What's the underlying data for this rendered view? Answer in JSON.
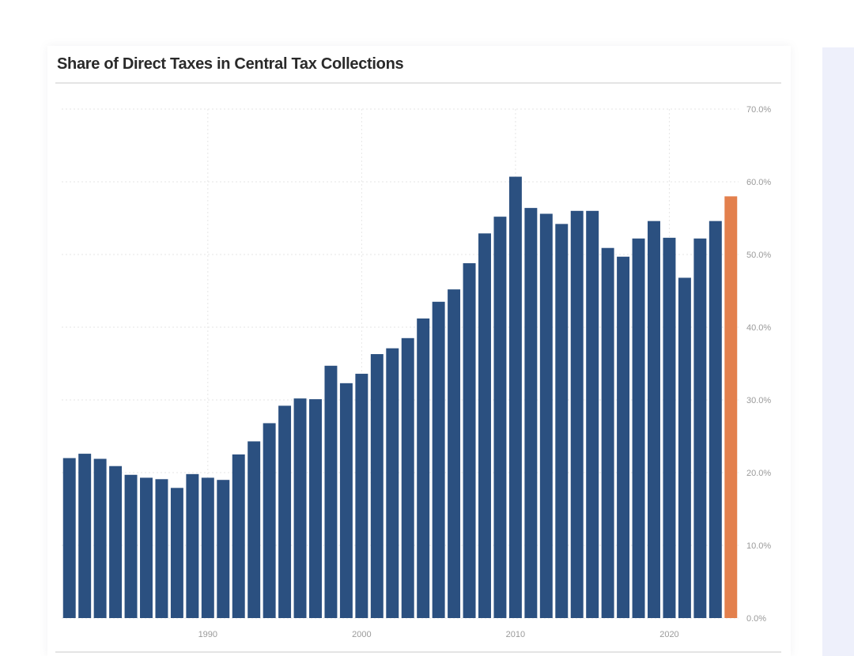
{
  "chart_data": {
    "type": "bar",
    "title": "Share of Direct Taxes in Central Tax Collections",
    "xlabel": "",
    "ylabel": "",
    "ylim": [
      0,
      70
    ],
    "y_ticks": [
      "0.0%",
      "10.0%",
      "20.0%",
      "30.0%",
      "40.0%",
      "50.0%",
      "60.0%",
      "70.0%"
    ],
    "y_axis_position": "right",
    "x_tick_labels": [
      {
        "year": 1990,
        "label": "1990"
      },
      {
        "year": 2000,
        "label": "2000"
      },
      {
        "year": 2010,
        "label": "2010"
      },
      {
        "year": 2020,
        "label": "2020"
      }
    ],
    "categories": [
      1981,
      1982,
      1983,
      1984,
      1985,
      1986,
      1987,
      1988,
      1989,
      1990,
      1991,
      1992,
      1993,
      1994,
      1995,
      1996,
      1997,
      1998,
      1999,
      2000,
      2001,
      2002,
      2003,
      2004,
      2005,
      2006,
      2007,
      2008,
      2009,
      2010,
      2011,
      2012,
      2013,
      2014,
      2015,
      2016,
      2017,
      2018,
      2019,
      2020,
      2021,
      2022,
      2023,
      2024
    ],
    "values": [
      22.0,
      22.6,
      21.9,
      20.9,
      19.7,
      19.3,
      19.1,
      17.9,
      19.8,
      19.3,
      19.0,
      22.5,
      24.3,
      26.8,
      29.2,
      30.2,
      30.1,
      34.7,
      32.3,
      33.6,
      36.3,
      37.1,
      38.5,
      41.2,
      43.5,
      45.2,
      48.8,
      52.9,
      55.2,
      60.7,
      56.4,
      55.6,
      54.2,
      56.0,
      56.0,
      50.9,
      49.7,
      52.2,
      54.6,
      52.3,
      46.8,
      52.2,
      54.6,
      58.0
    ],
    "highlight": {
      "index": 43,
      "color": "#e3804d"
    },
    "bar_color": "#2b5080",
    "grid": true
  }
}
